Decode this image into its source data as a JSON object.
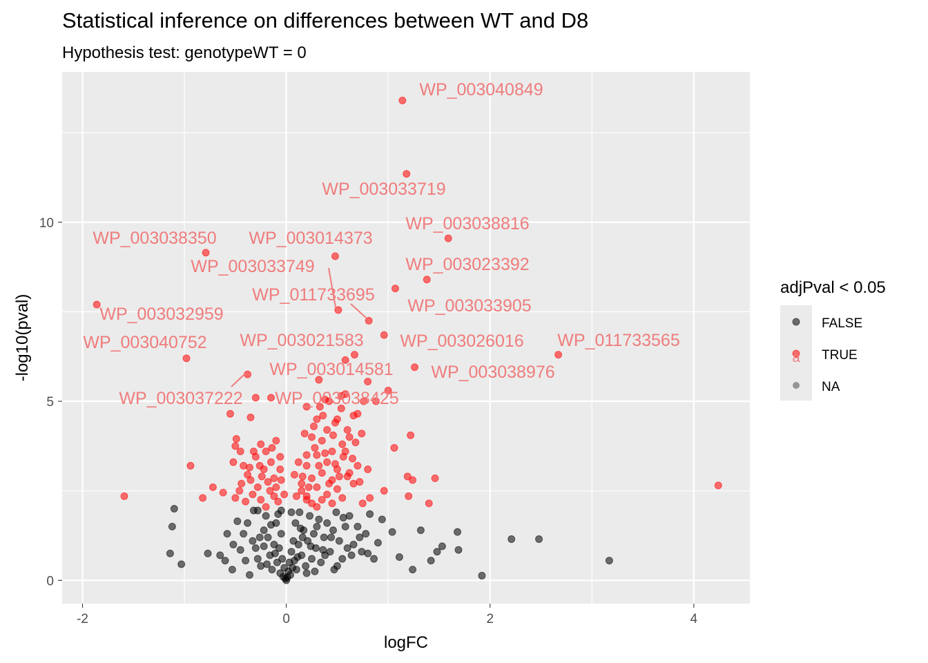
{
  "title": "Statistical inference on differences between WT and D8",
  "subtitle": "Hypothesis test: genotypeWT = 0",
  "colors": {
    "panel": "#ebebeb",
    "grid": "#ffffff",
    "false_point": "#000000",
    "true_point": "#ff0000",
    "na_point": "#808080",
    "label_text": "#f07c7c",
    "axis_text": "#4d4d4d"
  },
  "chart_data": {
    "type": "scatter",
    "title": "Statistical inference on differences between WT and D8",
    "subtitle": "Hypothesis test: genotypeWT = 0",
    "xlabel": "logFC",
    "ylabel": "-log10(pval)",
    "xlim": [
      -2.2,
      4.55
    ],
    "ylim": [
      -0.65,
      14.2
    ],
    "xticks": [
      -2,
      0,
      2,
      4
    ],
    "yticks": [
      0,
      5,
      10
    ],
    "grid": true,
    "legend": {
      "title": "adjPval < 0.05",
      "position": "right",
      "entries": [
        "FALSE",
        "TRUE",
        "NA"
      ]
    },
    "labeled_points": [
      {
        "name": "WP_003040849",
        "x": 1.14,
        "y": 13.4
      },
      {
        "name": "WP_003033719",
        "x": 1.18,
        "y": 11.35
      },
      {
        "name": "WP_003038816",
        "x": 1.59,
        "y": 9.55
      },
      {
        "name": "WP_003038350",
        "x": -0.79,
        "y": 9.15
      },
      {
        "name": "WP_003014373",
        "x": 0.48,
        "y": 9.05
      },
      {
        "name": "WP_003033749",
        "x": 0.51,
        "y": 7.55
      },
      {
        "name": "WP_003023392",
        "x": 1.38,
        "y": 8.4
      },
      {
        "name": "WP_011733695",
        "x": 0.81,
        "y": 7.25
      },
      {
        "name": "WP_003033905",
        "x": 1.07,
        "y": 8.15
      },
      {
        "name": "WP_003032959",
        "x": -1.86,
        "y": 7.7
      },
      {
        "name": "WP_003040752",
        "x": -0.98,
        "y": 6.2
      },
      {
        "name": "WP_003021583",
        "x": 0.96,
        "y": 6.85
      },
      {
        "name": "WP_003026016",
        "x": 0.67,
        "y": 6.3
      },
      {
        "name": "WP_011733565",
        "x": 2.67,
        "y": 6.3
      },
      {
        "name": "WP_003014581",
        "x": 0.58,
        "y": 6.15
      },
      {
        "name": "WP_003038976",
        "x": 1.26,
        "y": 5.95
      },
      {
        "name": "WP_003037222",
        "x": -0.38,
        "y": 5.75
      },
      {
        "name": "WP_003038425",
        "x": 0.54,
        "y": 5.15
      }
    ],
    "significant_points": [
      [
        -1.59,
        2.35
      ],
      [
        -0.94,
        3.2
      ],
      [
        -0.72,
        2.6
      ],
      [
        -0.82,
        2.3
      ],
      [
        -0.62,
        2.45
      ],
      [
        4.24,
        2.65
      ],
      [
        1.22,
        4.05
      ],
      [
        1.06,
        3.7
      ],
      [
        1.46,
        2.85
      ],
      [
        1.19,
        2.9
      ],
      [
        1.24,
        2.8
      ],
      [
        0.96,
        2.5
      ],
      [
        1.2,
        2.35
      ],
      [
        1.4,
        2.15
      ],
      [
        0.82,
        2.3
      ],
      [
        0.75,
        2.15
      ],
      [
        -0.55,
        4.65
      ],
      [
        -0.49,
        3.95
      ],
      [
        -0.35,
        4.55
      ],
      [
        -0.25,
        3.8
      ],
      [
        -0.1,
        3.9
      ],
      [
        -0.45,
        3.6
      ],
      [
        -0.3,
        3.45
      ],
      [
        -0.15,
        3.3
      ],
      [
        -0.42,
        3.2
      ],
      [
        -0.22,
        3.1
      ],
      [
        -0.52,
        3.3
      ],
      [
        -0.38,
        2.95
      ],
      [
        -0.18,
        2.75
      ],
      [
        -0.05,
        2.8
      ],
      [
        -0.28,
        2.6
      ],
      [
        -0.46,
        2.5
      ],
      [
        -0.33,
        2.4
      ],
      [
        -0.12,
        2.35
      ],
      [
        -0.25,
        2.25
      ],
      [
        -0.4,
        2.2
      ],
      [
        -0.08,
        2.2
      ],
      [
        -0.5,
        3.75
      ],
      [
        -0.2,
        3.6
      ],
      [
        -0.06,
        3.45
      ],
      [
        -0.35,
        2.8
      ],
      [
        -0.3,
        5.1
      ],
      [
        -0.15,
        5.1
      ],
      [
        0.2,
        4.85
      ],
      [
        0.3,
        4.5
      ],
      [
        0.4,
        4.2
      ],
      [
        0.5,
        4.5
      ],
      [
        0.6,
        4.2
      ],
      [
        0.25,
        4.0
      ],
      [
        0.35,
        3.9
      ],
      [
        0.45,
        3.6
      ],
      [
        0.55,
        3.8
      ],
      [
        0.65,
        3.4
      ],
      [
        0.3,
        3.5
      ],
      [
        0.4,
        3.3
      ],
      [
        0.2,
        3.2
      ],
      [
        0.5,
        3.1
      ],
      [
        0.7,
        3.2
      ],
      [
        0.35,
        3.0
      ],
      [
        0.25,
        2.85
      ],
      [
        0.45,
        2.8
      ],
      [
        0.6,
        2.9
      ],
      [
        0.15,
        2.7
      ],
      [
        0.3,
        2.6
      ],
      [
        0.5,
        2.55
      ],
      [
        0.4,
        2.4
      ],
      [
        0.2,
        2.35
      ],
      [
        0.55,
        2.3
      ],
      [
        0.35,
        2.25
      ],
      [
        0.25,
        2.15
      ],
      [
        0.45,
        2.15
      ],
      [
        0.15,
        2.5
      ],
      [
        0.28,
        3.7
      ],
      [
        0.38,
        3.55
      ],
      [
        0.48,
        3.25
      ],
      [
        0.62,
        3.0
      ],
      [
        0.72,
        2.75
      ],
      [
        0.8,
        3.1
      ],
      [
        0.58,
        5.2
      ],
      [
        0.66,
        4.6
      ],
      [
        0.76,
        5.0
      ],
      [
        0.88,
        5.0
      ],
      [
        1.0,
        5.3
      ],
      [
        0.8,
        5.55
      ],
      [
        0.54,
        4.8
      ],
      [
        0.33,
        4.85
      ],
      [
        0.42,
        5.0
      ],
      [
        0.32,
        5.6
      ],
      [
        0.38,
        5.05
      ],
      [
        0.48,
        4.4
      ],
      [
        0.62,
        4.0
      ],
      [
        0.7,
        4.65
      ],
      [
        0.2,
        3.5
      ],
      [
        0.12,
        3.3
      ],
      [
        0.16,
        2.9
      ],
      [
        0.22,
        2.6
      ],
      [
        0.32,
        3.2
      ],
      [
        0.42,
        2.7
      ],
      [
        0.52,
        2.9
      ],
      [
        0.27,
        4.3
      ],
      [
        0.18,
        4.1
      ],
      [
        0.36,
        4.6
      ],
      [
        0.46,
        4.05
      ],
      [
        0.56,
        3.45
      ],
      [
        0.2,
        2.25
      ],
      [
        0.1,
        2.35
      ],
      [
        0.3,
        2.05
      ],
      [
        -0.02,
        2.4
      ],
      [
        -0.16,
        2.5
      ],
      [
        -0.24,
        2.9
      ],
      [
        -0.32,
        3.6
      ],
      [
        -0.26,
        3.2
      ],
      [
        -0.36,
        3.15
      ],
      [
        -0.14,
        3.7
      ],
      [
        -0.44,
        2.7
      ],
      [
        -0.5,
        2.3
      ],
      [
        -0.2,
        2.05
      ],
      [
        -0.1,
        2.6
      ],
      [
        -0.06,
        3.1
      ],
      [
        -0.12,
        2.85
      ],
      [
        0.08,
        2.95
      ],
      [
        0.58,
        3.6
      ],
      [
        0.66,
        2.7
      ],
      [
        0.74,
        4.1
      ],
      [
        0.68,
        3.85
      ]
    ],
    "nonsignificant_points": [
      [
        -1.1,
        2.0
      ],
      [
        -1.12,
        1.5
      ],
      [
        -1.14,
        0.75
      ],
      [
        -1.03,
        0.45
      ],
      [
        -0.77,
        0.75
      ],
      [
        -0.65,
        0.7
      ],
      [
        -0.6,
        0.55
      ],
      [
        -0.53,
        0.3
      ],
      [
        -0.45,
        0.85
      ],
      [
        -0.58,
        1.3
      ],
      [
        -0.52,
        1.0
      ],
      [
        -0.42,
        1.3
      ],
      [
        -0.38,
        1.6
      ],
      [
        -0.33,
        1.1
      ],
      [
        -0.3,
        0.9
      ],
      [
        -0.28,
        0.6
      ],
      [
        -0.25,
        0.4
      ],
      [
        -0.22,
        1.4
      ],
      [
        -0.2,
        1.8
      ],
      [
        -0.18,
        1.2
      ],
      [
        -0.16,
        0.7
      ],
      [
        -0.14,
        0.3
      ],
      [
        -0.12,
        1.0
      ],
      [
        -0.1,
        1.6
      ],
      [
        -0.09,
        0.5
      ],
      [
        -0.07,
        0.9
      ],
      [
        -0.06,
        0.2
      ],
      [
        -0.05,
        1.3
      ],
      [
        -0.04,
        0.6
      ],
      [
        -0.03,
        0.1
      ],
      [
        -0.02,
        0.35
      ],
      [
        -0.01,
        0.05
      ],
      [
        0.0,
        0.0
      ],
      [
        0.01,
        0.08
      ],
      [
        0.02,
        0.25
      ],
      [
        0.03,
        0.5
      ],
      [
        0.04,
        0.15
      ],
      [
        0.05,
        0.8
      ],
      [
        0.06,
        0.35
      ],
      [
        0.07,
        1.1
      ],
      [
        0.08,
        0.55
      ],
      [
        0.09,
        1.6
      ],
      [
        0.1,
        0.3
      ],
      [
        0.12,
        1.0
      ],
      [
        0.13,
        1.9
      ],
      [
        0.15,
        0.7
      ],
      [
        0.17,
        1.4
      ],
      [
        0.19,
        0.4
      ],
      [
        0.21,
        1.1
      ],
      [
        0.23,
        1.8
      ],
      [
        0.25,
        0.6
      ],
      [
        0.27,
        1.3
      ],
      [
        0.29,
        0.9
      ],
      [
        0.32,
        1.7
      ],
      [
        0.34,
        0.5
      ],
      [
        0.37,
        1.2
      ],
      [
        0.4,
        1.6
      ],
      [
        0.43,
        0.8
      ],
      [
        0.46,
        1.4
      ],
      [
        0.49,
        1.9
      ],
      [
        0.52,
        1.1
      ],
      [
        0.55,
        0.6
      ],
      [
        0.58,
        1.5
      ],
      [
        0.62,
        1.8
      ],
      [
        0.66,
        1.0
      ],
      [
        0.7,
        1.5
      ],
      [
        0.74,
        0.8
      ],
      [
        0.78,
        1.3
      ],
      [
        0.82,
        1.85
      ],
      [
        0.86,
        0.6
      ],
      [
        0.94,
        1.7
      ],
      [
        1.04,
        1.35
      ],
      [
        1.11,
        0.65
      ],
      [
        1.24,
        0.3
      ],
      [
        1.32,
        1.4
      ],
      [
        1.42,
        0.55
      ],
      [
        1.48,
        0.8
      ],
      [
        1.53,
        0.95
      ],
      [
        1.68,
        1.35
      ],
      [
        1.69,
        0.85
      ],
      [
        1.92,
        0.13
      ],
      [
        2.21,
        1.15
      ],
      [
        2.48,
        1.15
      ],
      [
        3.17,
        0.55
      ],
      [
        -0.36,
        0.15
      ],
      [
        -0.28,
        1.95
      ],
      [
        -0.22,
        0.95
      ],
      [
        -0.15,
        1.55
      ],
      [
        -0.08,
        1.85
      ],
      [
        0.14,
        1.45
      ],
      [
        0.2,
        0.2
      ],
      [
        0.24,
        0.95
      ],
      [
        0.3,
        1.5
      ],
      [
        0.36,
        0.85
      ],
      [
        0.44,
        1.2
      ],
      [
        0.5,
        0.4
      ],
      [
        0.56,
        1.75
      ],
      [
        0.6,
        0.9
      ],
      [
        0.72,
        1.2
      ],
      [
        0.9,
        1.05
      ],
      [
        -0.48,
        1.65
      ],
      [
        -0.4,
        0.55
      ],
      [
        -0.32,
        1.95
      ],
      [
        -0.26,
        1.2
      ],
      [
        -0.19,
        0.45
      ],
      [
        -0.11,
        0.75
      ],
      [
        0.11,
        0.65
      ],
      [
        0.16,
        1.2
      ],
      [
        0.28,
        0.25
      ],
      [
        0.38,
        0.7
      ],
      [
        0.47,
        0.3
      ],
      [
        0.64,
        0.7
      ],
      [
        0.8,
        0.75
      ],
      [
        -0.05,
        1.95
      ],
      [
        0.05,
        1.9
      ]
    ]
  }
}
